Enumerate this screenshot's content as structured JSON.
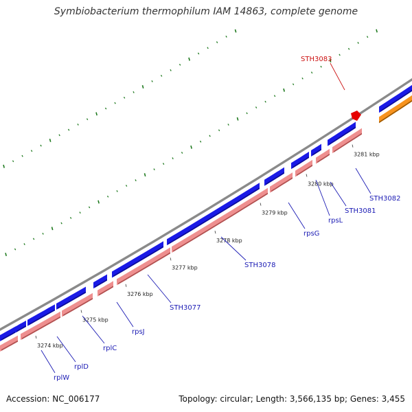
{
  "title": "Symbiobacterium thermophilum IAM 14863, complete genome",
  "footer": {
    "accession": "Accession: NC_006177",
    "summary": "Topology: circular; Length: 3,566,135 bp; Genes: 3,455"
  },
  "colors": {
    "backbone": "#8a8a8a",
    "forward_gene": "#1a1ae6",
    "reverse_gene": "#ee8f8f",
    "highlight_gene": "#e60000",
    "orange_gene": "#f7931e",
    "tick": "#1f7a1f",
    "label_blue": "#1a1ab4",
    "label_red": "#cc1111"
  },
  "kbp_ticks": [
    "3274 kbp",
    "3275 kbp",
    "3276 kbp",
    "3277 kbp",
    "3278 kbp",
    "3279 kbp",
    "3280 kbp",
    "3281 kbp"
  ],
  "gene_labels": [
    {
      "name": "rplW",
      "color": "blue"
    },
    {
      "name": "rplD",
      "color": "blue"
    },
    {
      "name": "rplC",
      "color": "blue"
    },
    {
      "name": "rpsJ",
      "color": "blue"
    },
    {
      "name": "STH3077",
      "color": "blue"
    },
    {
      "name": "STH3078",
      "color": "blue"
    },
    {
      "name": "rpsG",
      "color": "blue"
    },
    {
      "name": "rpsL",
      "color": "blue"
    },
    {
      "name": "STH3081",
      "color": "blue"
    },
    {
      "name": "STH3082",
      "color": "blue"
    },
    {
      "name": "STH3083",
      "color": "red"
    }
  ]
}
